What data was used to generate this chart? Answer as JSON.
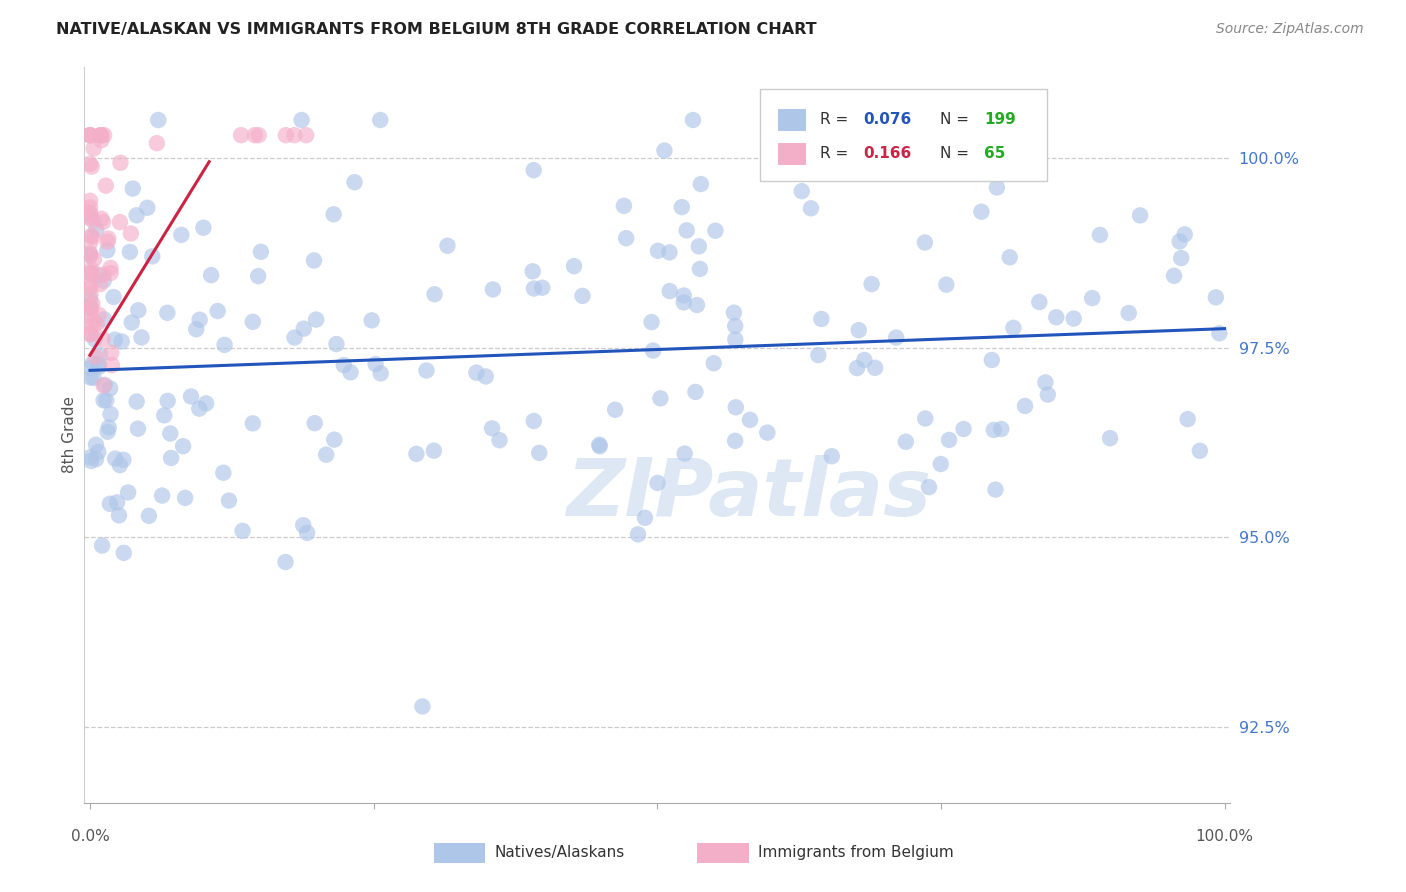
{
  "title": "NATIVE/ALASKAN VS IMMIGRANTS FROM BELGIUM 8TH GRADE CORRELATION CHART",
  "source": "Source: ZipAtlas.com",
  "ylabel": "8th Grade",
  "y_ticks": [
    92.5,
    95.0,
    97.5,
    100.0
  ],
  "y_tick_labels": [
    "92.5%",
    "95.0%",
    "97.5%",
    "100.0%"
  ],
  "blue_color": "#aec6e8",
  "pink_color": "#f4afc8",
  "blue_line_color": "#2255bb",
  "pink_line_color": "#cc2244",
  "tick_color": "#4477cc",
  "watermark_color": "#e0e8f0",
  "ylim_min": 91.5,
  "ylim_max": 101.2,
  "xlim_min": -0.005,
  "xlim_max": 1.005,
  "scatter_size": 140,
  "scatter_alpha": 0.65,
  "blue_trend_x0": 0.0,
  "blue_trend_x1": 1.0,
  "blue_trend_y0": 97.2,
  "blue_trend_y1": 97.75,
  "pink_trend_x0": 0.0,
  "pink_trend_x1": 0.105,
  "pink_trend_y0": 97.4,
  "pink_trend_y1": 99.95,
  "legend_r_blue": "0.076",
  "legend_n_blue": "199",
  "legend_r_pink": "0.166",
  "legend_n_pink": "65"
}
